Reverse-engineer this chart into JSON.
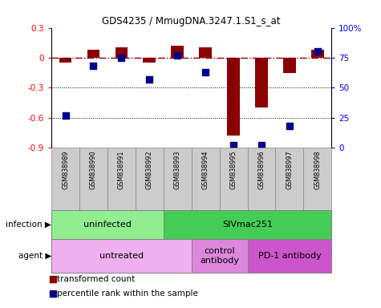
{
  "title": "GDS4235 / MmugDNA.3247.1.S1_s_at",
  "samples": [
    "GSM838989",
    "GSM838990",
    "GSM838991",
    "GSM838992",
    "GSM838993",
    "GSM838994",
    "GSM838995",
    "GSM838996",
    "GSM838997",
    "GSM838998"
  ],
  "red_values": [
    -0.05,
    0.08,
    0.1,
    -0.05,
    0.12,
    0.1,
    -0.78,
    -0.5,
    -0.15,
    0.08
  ],
  "blue_values": [
    27,
    68,
    75,
    57,
    77,
    63,
    2,
    2,
    18,
    80
  ],
  "ylim": [
    -0.9,
    0.3
  ],
  "yticks_left": [
    -0.9,
    -0.6,
    -0.3,
    0.0,
    0.3
  ],
  "ytick_labels_left": [
    "-0.9",
    "-0.6",
    "-0.3",
    "0",
    "0.3"
  ],
  "yticks_right": [
    0,
    25,
    50,
    75,
    100
  ],
  "ytick_labels_right": [
    "0",
    "25",
    "50",
    "75",
    "100%"
  ],
  "hline_y": 0.0,
  "dotted_lines": [
    -0.3,
    -0.6
  ],
  "bar_color": "#8B0000",
  "point_color": "#00008B",
  "infection_groups": [
    {
      "label": "uninfected",
      "start": 0,
      "end": 4,
      "color": "#90EE90"
    },
    {
      "label": "SIVmac251",
      "start": 4,
      "end": 10,
      "color": "#44CC55"
    }
  ],
  "agent_groups": [
    {
      "label": "untreated",
      "start": 0,
      "end": 5,
      "color": "#EEB0EE"
    },
    {
      "label": "control\nantibody",
      "start": 5,
      "end": 7,
      "color": "#DD88DD"
    },
    {
      "label": "PD-1 antibody",
      "start": 7,
      "end": 10,
      "color": "#CC55CC"
    }
  ],
  "legend_red": "transformed count",
  "legend_blue": "percentile rank within the sample",
  "infection_label": "infection",
  "agent_label": "agent",
  "bar_width": 0.45,
  "point_size": 35,
  "sample_box_color": "#CCCCCC",
  "sample_box_edge": "#888888"
}
